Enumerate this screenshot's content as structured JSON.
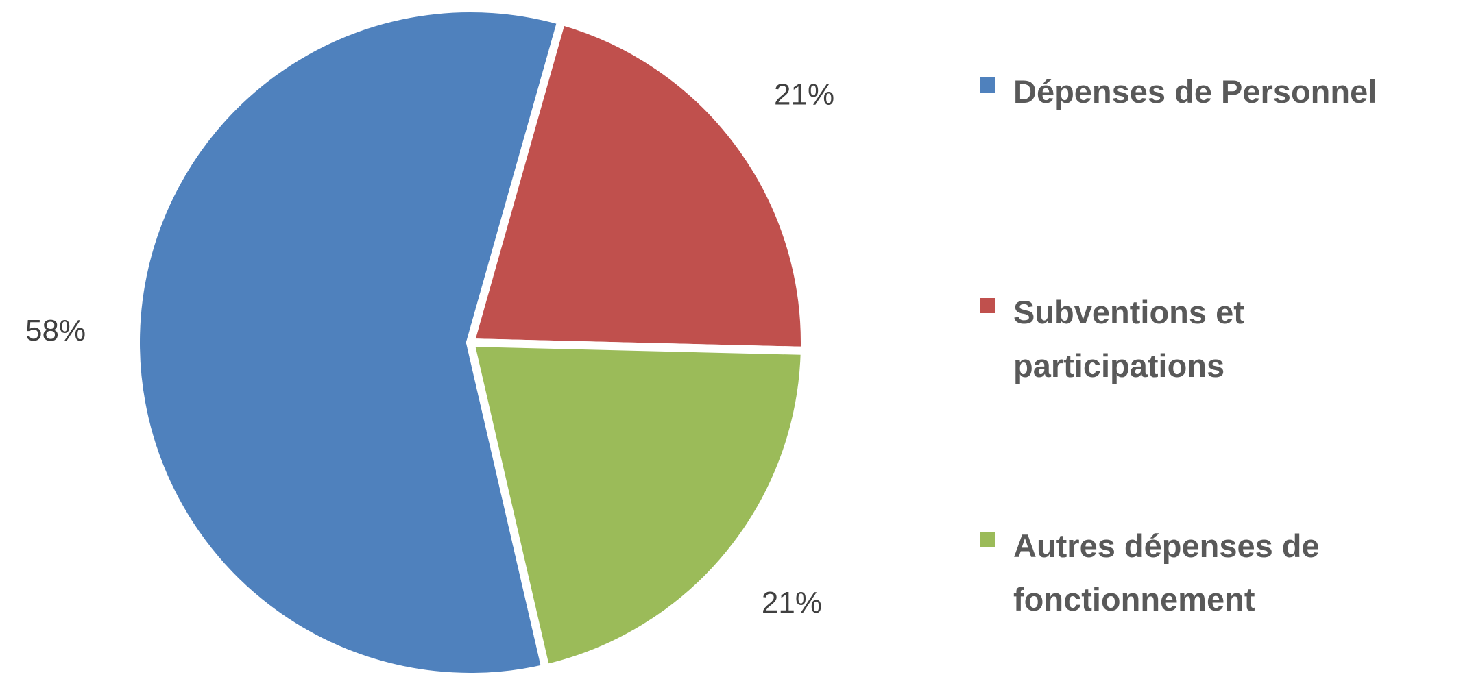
{
  "chart_data": {
    "type": "pie",
    "categories": [
      "Dépenses de Personnel",
      "Subventions et participations",
      "Autres dépenses de fonctionnement"
    ],
    "values": [
      58,
      21,
      21
    ],
    "value_labels": [
      "58%",
      "21%",
      "21%"
    ],
    "colors": [
      "#4f81bd",
      "#c0504d",
      "#9bbb59"
    ],
    "legend": "right"
  }
}
